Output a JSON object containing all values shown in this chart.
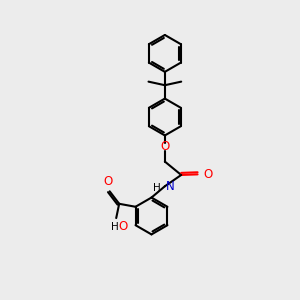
{
  "background_color": "#ececec",
  "line_color": "#000000",
  "oxygen_color": "#ff0000",
  "nitrogen_color": "#0000cc",
  "lw": 1.5,
  "dbo": 0.07,
  "figsize": [
    3.0,
    3.0
  ],
  "dpi": 100,
  "ring_r": 0.62,
  "xlim": [
    0,
    10
  ],
  "ylim": [
    0,
    10
  ]
}
